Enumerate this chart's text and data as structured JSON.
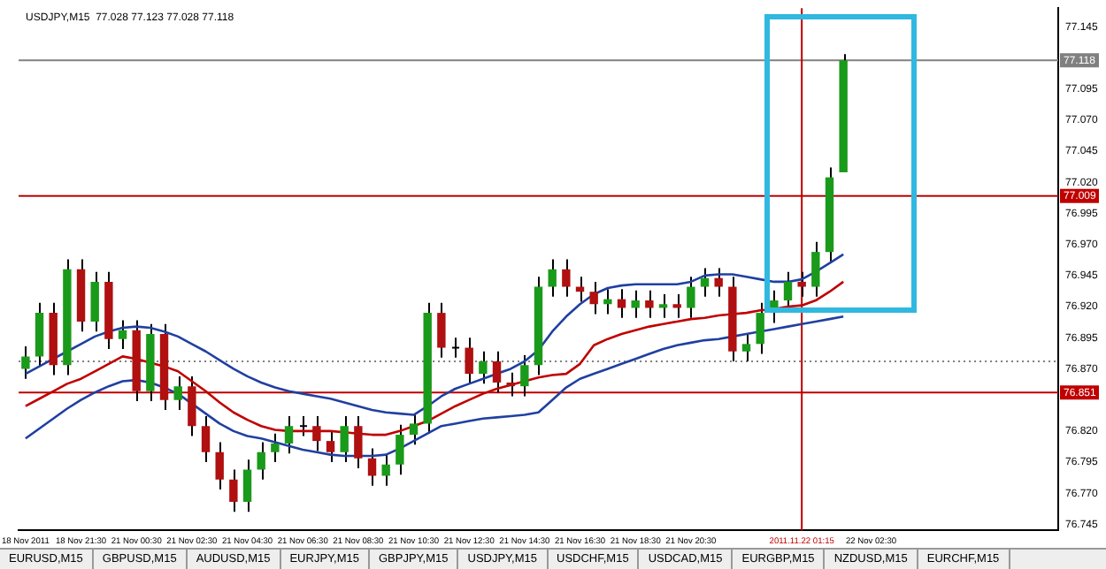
{
  "chart_data": {
    "type": "candlestick",
    "title": "USDJPY,M15  77.028 77.123 77.028 77.118",
    "categories": [
      "18 Nov 2011",
      null,
      null,
      null,
      "18 Nov 21:30",
      null,
      null,
      null,
      "21 Nov 00:30",
      null,
      null,
      null,
      "21 Nov 02:30",
      null,
      null,
      null,
      "21 Nov 04:30",
      null,
      null,
      null,
      "21 Nov 06:30",
      null,
      null,
      null,
      "21 Nov 08:30",
      null,
      null,
      null,
      "21 Nov 10:30",
      null,
      null,
      null,
      "21 Nov 12:30",
      null,
      null,
      null,
      "21 Nov 14:30",
      null,
      null,
      null,
      "21 Nov 16:30",
      null,
      null,
      null,
      "21 Nov 18:30",
      null,
      null,
      null,
      "21 Nov 20:30",
      null,
      null,
      null,
      null,
      null,
      null,
      null,
      "2011.11.22 01:15",
      null,
      null,
      null,
      null,
      "22 Nov 02:30",
      null,
      null,
      null,
      null,
      null,
      null,
      null,
      null,
      null,
      null,
      null,
      null,
      null
    ],
    "ohlc": [
      [
        76.87,
        76.888,
        76.862,
        76.88
      ],
      [
        76.88,
        76.923,
        76.872,
        76.915
      ],
      [
        76.915,
        76.923,
        76.865,
        76.873
      ],
      [
        76.873,
        76.958,
        76.865,
        76.95
      ],
      [
        76.95,
        76.958,
        76.9,
        76.908
      ],
      [
        76.908,
        76.948,
        76.9,
        76.94
      ],
      [
        76.94,
        76.948,
        76.886,
        76.894
      ],
      [
        76.894,
        76.909,
        76.886,
        76.901
      ],
      [
        76.901,
        76.909,
        76.844,
        76.852
      ],
      [
        76.852,
        76.906,
        76.844,
        76.898
      ],
      [
        76.898,
        76.906,
        76.837,
        76.845
      ],
      [
        76.845,
        76.864,
        76.837,
        76.856
      ],
      [
        76.856,
        76.864,
        76.816,
        76.824
      ],
      [
        76.824,
        76.832,
        76.795,
        76.803
      ],
      [
        76.803,
        76.811,
        76.773,
        76.781
      ],
      [
        76.781,
        76.789,
        76.755,
        76.763
      ],
      [
        76.763,
        76.797,
        76.755,
        76.789
      ],
      [
        76.789,
        76.811,
        76.781,
        76.803
      ],
      [
        76.803,
        76.818,
        76.795,
        76.81
      ],
      [
        76.81,
        76.832,
        76.802,
        76.824
      ],
      [
        76.824,
        76.832,
        76.816,
        76.824
      ],
      [
        76.824,
        76.832,
        76.804,
        76.812
      ],
      [
        76.812,
        76.82,
        76.795,
        76.803
      ],
      [
        76.803,
        76.832,
        76.795,
        76.824
      ],
      [
        76.824,
        76.832,
        76.79,
        76.798
      ],
      [
        76.798,
        76.806,
        76.776,
        76.784
      ],
      [
        76.784,
        76.801,
        76.776,
        76.793
      ],
      [
        76.793,
        76.825,
        76.785,
        76.817
      ],
      [
        76.817,
        76.834,
        76.809,
        76.826
      ],
      [
        76.826,
        76.923,
        76.818,
        76.915
      ],
      [
        76.915,
        76.923,
        76.879,
        76.887
      ],
      [
        76.887,
        76.895,
        76.879,
        76.887
      ],
      [
        76.887,
        76.895,
        76.858,
        76.866
      ],
      [
        76.866,
        76.884,
        76.858,
        76.876
      ],
      [
        76.876,
        76.884,
        76.851,
        76.859
      ],
      [
        76.859,
        76.867,
        76.848,
        76.856
      ],
      [
        76.856,
        76.881,
        76.848,
        76.873
      ],
      [
        76.873,
        76.944,
        76.865,
        76.936
      ],
      [
        76.936,
        76.958,
        76.928,
        76.95
      ],
      [
        76.95,
        76.958,
        76.928,
        76.936
      ],
      [
        76.936,
        76.944,
        76.924,
        76.932
      ],
      [
        76.932,
        76.94,
        76.914,
        76.922
      ],
      [
        76.922,
        76.934,
        76.914,
        76.926
      ],
      [
        76.926,
        76.934,
        76.911,
        76.919
      ],
      [
        76.919,
        76.933,
        76.911,
        76.925
      ],
      [
        76.925,
        76.933,
        76.911,
        76.919
      ],
      [
        76.919,
        76.93,
        76.911,
        76.922
      ],
      [
        76.922,
        76.93,
        76.911,
        76.919
      ],
      [
        76.919,
        76.944,
        76.911,
        76.936
      ],
      [
        76.936,
        76.951,
        76.928,
        76.943
      ],
      [
        76.943,
        76.951,
        76.928,
        76.936
      ],
      [
        76.936,
        76.944,
        76.876,
        76.884
      ],
      [
        76.884,
        76.898,
        76.876,
        76.89
      ],
      [
        76.89,
        76.923,
        76.882,
        76.915
      ],
      [
        76.915,
        76.933,
        76.907,
        76.925
      ],
      [
        76.925,
        76.948,
        76.917,
        76.94
      ],
      [
        76.94,
        76.948,
        76.928,
        76.936
      ],
      [
        76.936,
        76.972,
        76.928,
        76.964
      ],
      [
        76.964,
        77.032,
        76.956,
        77.024
      ],
      [
        77.028,
        77.123,
        77.028,
        77.118
      ],
      null,
      null,
      null,
      null,
      null,
      null,
      null,
      null,
      null,
      null,
      null,
      null,
      null,
      null,
      null
    ],
    "series": [
      {
        "type": "line",
        "color": "#c00000",
        "values": [
          76.84,
          76.846,
          76.852,
          76.858,
          76.862,
          76.868,
          76.874,
          76.88,
          76.878,
          76.875,
          76.872,
          76.868,
          76.86,
          76.852,
          76.843,
          76.835,
          76.829,
          76.824,
          76.821,
          76.82,
          76.82,
          76.82,
          76.82,
          76.819,
          76.818,
          76.817,
          76.817,
          76.82,
          76.824,
          76.828,
          76.834,
          76.84,
          76.845,
          76.85,
          76.854,
          76.857,
          76.86,
          76.863,
          76.865,
          76.866,
          76.874,
          76.889,
          76.894,
          76.898,
          76.901,
          76.904,
          76.906,
          76.908,
          76.91,
          76.911,
          76.913,
          76.914,
          76.915,
          76.917,
          76.918,
          76.92,
          76.921,
          76.925,
          76.932,
          76.94,
          null,
          null,
          null,
          null,
          null,
          null,
          null,
          null,
          null,
          null,
          null,
          null,
          null,
          null,
          null
        ]
      },
      {
        "type": "line",
        "color": "#2040a0",
        "values": [
          76.866,
          76.872,
          76.878,
          76.884,
          76.89,
          76.896,
          76.9,
          76.903,
          76.904,
          76.903,
          76.9,
          76.896,
          76.89,
          76.884,
          76.877,
          76.87,
          76.864,
          76.859,
          76.855,
          76.852,
          76.85,
          76.848,
          76.846,
          76.843,
          76.84,
          76.837,
          76.835,
          76.834,
          76.833,
          76.84,
          76.848,
          76.854,
          76.858,
          76.862,
          76.866,
          76.87,
          76.876,
          76.885,
          76.9,
          76.912,
          76.922,
          76.93,
          76.935,
          76.937,
          76.938,
          76.938,
          76.938,
          76.938,
          76.94,
          76.945,
          76.946,
          76.946,
          76.944,
          76.942,
          76.94,
          76.94,
          76.942,
          76.948,
          76.955,
          76.962,
          null,
          null,
          null,
          null,
          null,
          null,
          null,
          null,
          null,
          null,
          null,
          null,
          null,
          null,
          null
        ]
      },
      {
        "type": "line",
        "color": "#2040a0",
        "values": [
          76.814,
          76.822,
          76.83,
          76.838,
          76.845,
          76.851,
          76.856,
          76.86,
          76.861,
          76.859,
          76.855,
          76.85,
          76.842,
          76.834,
          76.826,
          76.82,
          76.816,
          76.814,
          76.811,
          76.808,
          76.805,
          76.803,
          76.801,
          76.8,
          76.8,
          76.8,
          76.801,
          76.806,
          76.812,
          76.818,
          76.824,
          76.826,
          76.828,
          76.83,
          76.831,
          76.832,
          76.833,
          76.835,
          76.845,
          76.855,
          76.862,
          76.866,
          76.87,
          76.874,
          76.878,
          76.882,
          76.886,
          76.889,
          76.891,
          76.893,
          76.894,
          76.896,
          76.898,
          76.9,
          76.902,
          76.904,
          76.906,
          76.908,
          76.91,
          76.912,
          null,
          null,
          null,
          null,
          null,
          null,
          null,
          null,
          null,
          null,
          null,
          null,
          null,
          null,
          null
        ]
      }
    ],
    "ylim": [
      76.74,
      77.16
    ],
    "yticks": [
      {
        "value": 76.745,
        "label": "76.745"
      },
      {
        "value": 76.77,
        "label": "76.770"
      },
      {
        "value": 76.795,
        "label": "76.795"
      },
      {
        "value": 76.82,
        "label": "76.820"
      },
      {
        "value": 76.87,
        "label": "76.870"
      },
      {
        "value": 76.895,
        "label": "76.895"
      },
      {
        "value": 76.92,
        "label": "76.920"
      },
      {
        "value": 76.945,
        "label": "76.945"
      },
      {
        "value": 76.97,
        "label": "76.970"
      },
      {
        "value": 76.995,
        "label": "76.995"
      },
      {
        "value": 77.02,
        "label": "77.020"
      },
      {
        "value": 77.045,
        "label": "77.045"
      },
      {
        "value": 77.07,
        "label": "77.070"
      },
      {
        "value": 77.095,
        "label": "77.095"
      },
      {
        "value": 77.145,
        "label": "77.145"
      }
    ],
    "ref_lines": [
      {
        "axis": "y",
        "value": 77.009,
        "label": "77.009",
        "color": "#c00000"
      },
      {
        "axis": "y",
        "value": 76.851,
        "label": "76.851",
        "color": "#c00000"
      },
      {
        "axis": "y",
        "value": 77.118,
        "label": "77.118",
        "color": "#808080"
      },
      {
        "axis": "y",
        "value": 76.876,
        "label": null,
        "color": "#808080",
        "line_style": "dotted"
      },
      {
        "axis": "x",
        "value": "2011.11.22 01:15",
        "label": null,
        "color": "#c00000"
      }
    ],
    "annotations": [
      "EURUSD,M15",
      "GBPUSD,M15",
      "AUDUSD,M15",
      "EURJPY,M15",
      "GBPJPY,M15",
      "USDJPY,M15",
      "USDCHF,M15",
      "USDCAD,M15",
      "EURGBP,M15",
      "NZDUSD,M15",
      "EURCHF,M15"
    ],
    "grid": false,
    "legend": false
  }
}
